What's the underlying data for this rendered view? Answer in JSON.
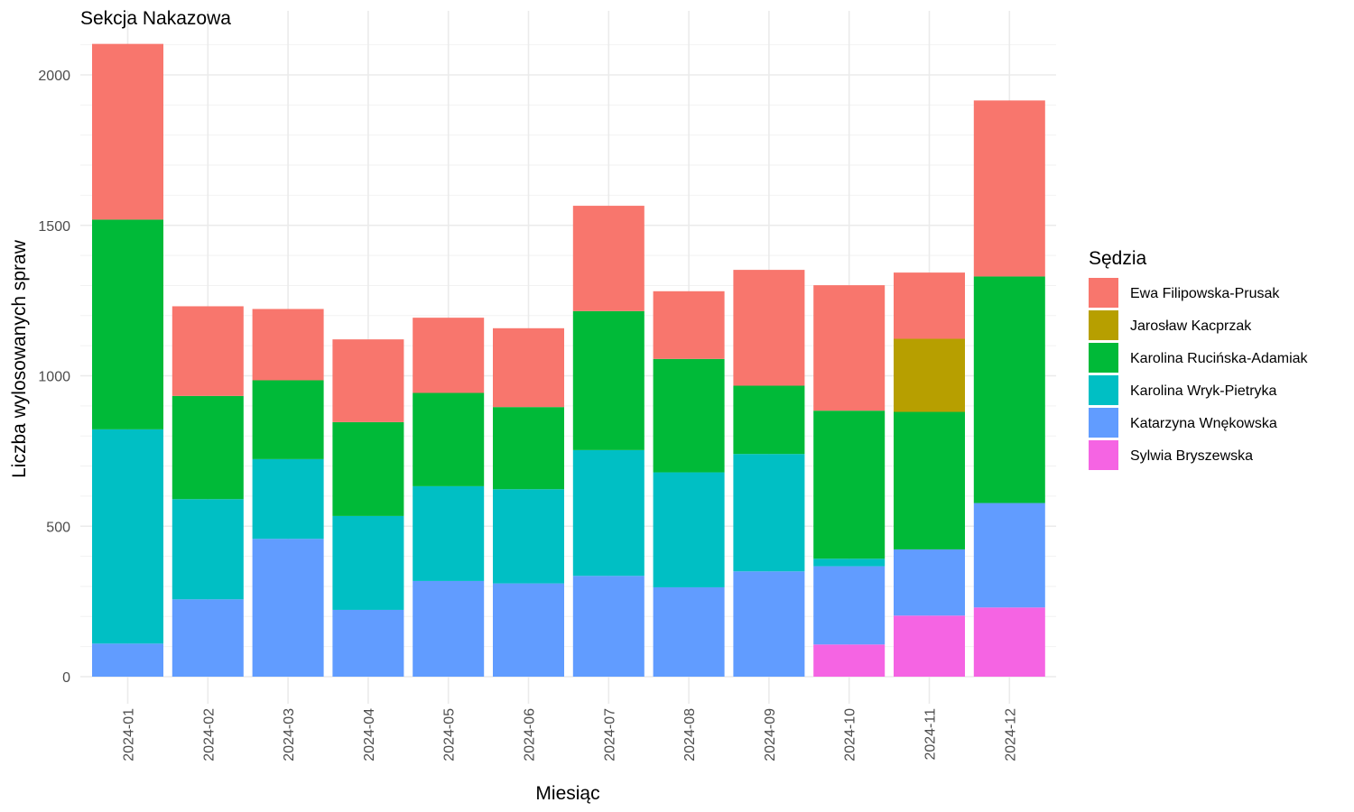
{
  "chart_data": {
    "type": "bar",
    "stacked": true,
    "title": "Sekcja Nakazowa",
    "xlabel": "Miesiąc",
    "ylabel": "Liczba wylosowanych spraw",
    "ylim": [
      0,
      2100
    ],
    "yticks": [
      0,
      500,
      1000,
      1500,
      2000
    ],
    "grid": true,
    "legend_title": "Sędzia",
    "legend_position": "right",
    "categories": [
      "2024-01",
      "2024-02",
      "2024-03",
      "2024-04",
      "2024-05",
      "2024-06",
      "2024-07",
      "2024-08",
      "2024-09",
      "2024-10",
      "2024-11",
      "2024-12"
    ],
    "series": [
      {
        "name": "Sylwia Bryszewska",
        "color": "#F564E3",
        "values": [
          0,
          0,
          0,
          0,
          0,
          0,
          0,
          0,
          0,
          107,
          203,
          230
        ]
      },
      {
        "name": "Katarzyna Wnękowska",
        "color": "#619CFF",
        "values": [
          110,
          257,
          458,
          222,
          318,
          310,
          335,
          297,
          350,
          260,
          220,
          347
        ]
      },
      {
        "name": "Karolina Wryk-Pietryka",
        "color": "#00BFC4",
        "values": [
          712,
          333,
          265,
          312,
          315,
          313,
          418,
          382,
          390,
          25,
          0,
          0
        ]
      },
      {
        "name": "Karolina Rucińska-Adamiak",
        "color": "#00BA38",
        "values": [
          697,
          343,
          262,
          312,
          310,
          273,
          462,
          377,
          227,
          492,
          457,
          753
        ]
      },
      {
        "name": "Jarosław Kacprzak",
        "color": "#B79F00",
        "values": [
          0,
          0,
          0,
          0,
          0,
          0,
          0,
          0,
          0,
          0,
          243,
          0
        ]
      },
      {
        "name": "Ewa Filipowska-Prusak",
        "color": "#F8766D",
        "values": [
          584,
          298,
          237,
          275,
          250,
          262,
          350,
          225,
          385,
          417,
          220,
          585
        ]
      }
    ],
    "legend_order": [
      "Ewa Filipowska-Prusak",
      "Jarosław Kacprzak",
      "Karolina Rucińska-Adamiak",
      "Karolina Wryk-Pietryka",
      "Katarzyna Wnękowska",
      "Sylwia Bryszewska"
    ]
  }
}
